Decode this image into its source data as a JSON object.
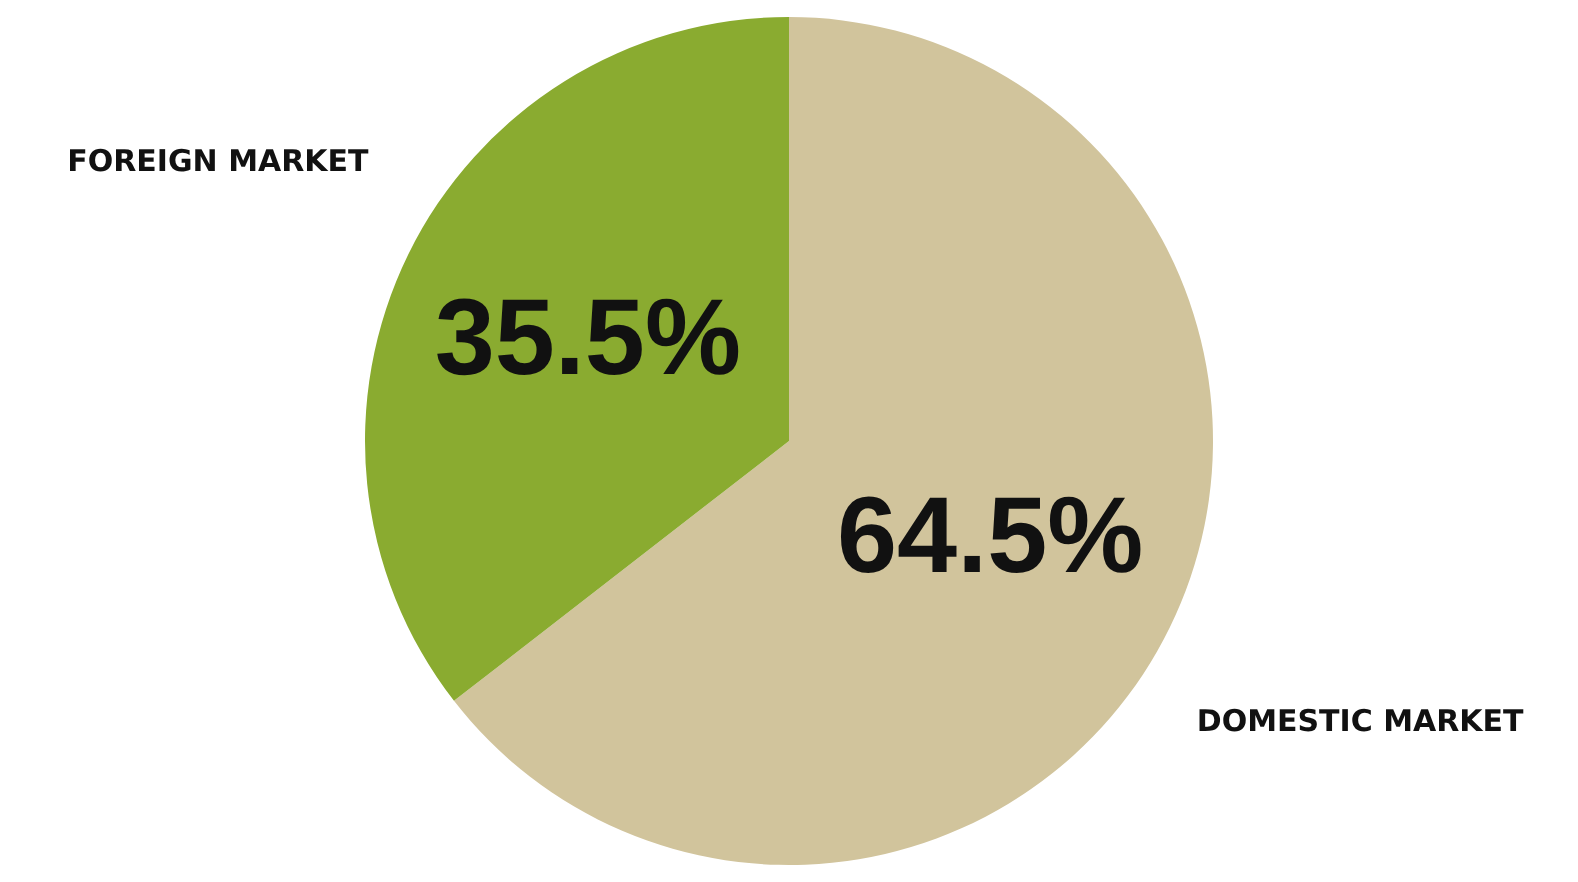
{
  "chart_data": {
    "type": "pie",
    "categories": [
      "DOMESTIC MARKET",
      "FOREIGN MARKET"
    ],
    "values": [
      64.5,
      35.5
    ],
    "colors": [
      "#d1c49c",
      "#8aab30"
    ],
    "value_labels": [
      "64.5%",
      "35.5%"
    ]
  }
}
